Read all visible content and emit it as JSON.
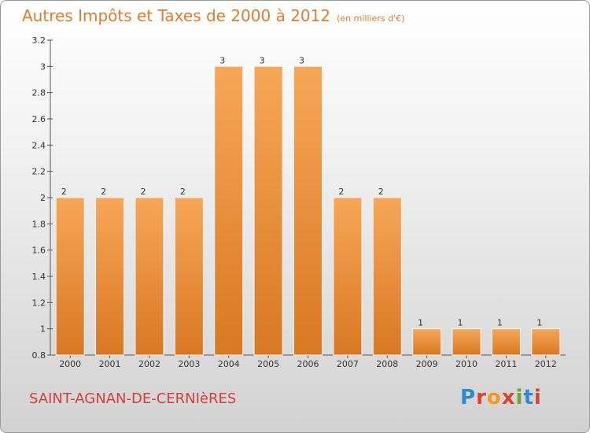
{
  "header": {
    "title": "Autres Impôts et Taxes de 2000 à 2012",
    "subtitle": "(en milliers d'€)"
  },
  "footer": {
    "commune": "SAINT-AGNAN-DE-CERNIèRES",
    "logo": "Proxiti",
    "logo_colors": [
      "#2b8bd6",
      "#e0402f",
      "#f39a1e",
      "#e0402f",
      "#6aa632",
      "#2b8bd6",
      "#e0402f"
    ]
  },
  "chart_data": {
    "type": "bar",
    "title": "Autres Impôts et Taxes de 2000 à 2012",
    "subtitle": "(en milliers d'€)",
    "categories": [
      "2000",
      "2001",
      "2002",
      "2003",
      "2004",
      "2005",
      "2006",
      "2007",
      "2008",
      "2009",
      "2010",
      "2011",
      "2012"
    ],
    "values": [
      2,
      2,
      2,
      2,
      3,
      3,
      3,
      2,
      2,
      1,
      1,
      1,
      1
    ],
    "data_labels": [
      "2",
      "2",
      "2",
      "2",
      "3",
      "3",
      "3",
      "2",
      "2",
      "1",
      "1",
      "1",
      "1"
    ],
    "ylim": [
      0.8,
      3.2
    ],
    "yticks": [
      0.8,
      1,
      1.2,
      1.4,
      1.6,
      1.8,
      2,
      2.2,
      2.4,
      2.6,
      2.8,
      3,
      3.2
    ],
    "ytick_labels": [
      "0.8",
      "1",
      "1.2",
      "1.4",
      "1.6",
      "1.8",
      "2",
      "2.2",
      "2.4",
      "2.6",
      "2.8",
      "3",
      "3.2"
    ],
    "grid": false,
    "bar_color_top": "#f7a757",
    "bar_color_bottom": "#d97822",
    "bar_edge_color": "#f2f2f2"
  }
}
